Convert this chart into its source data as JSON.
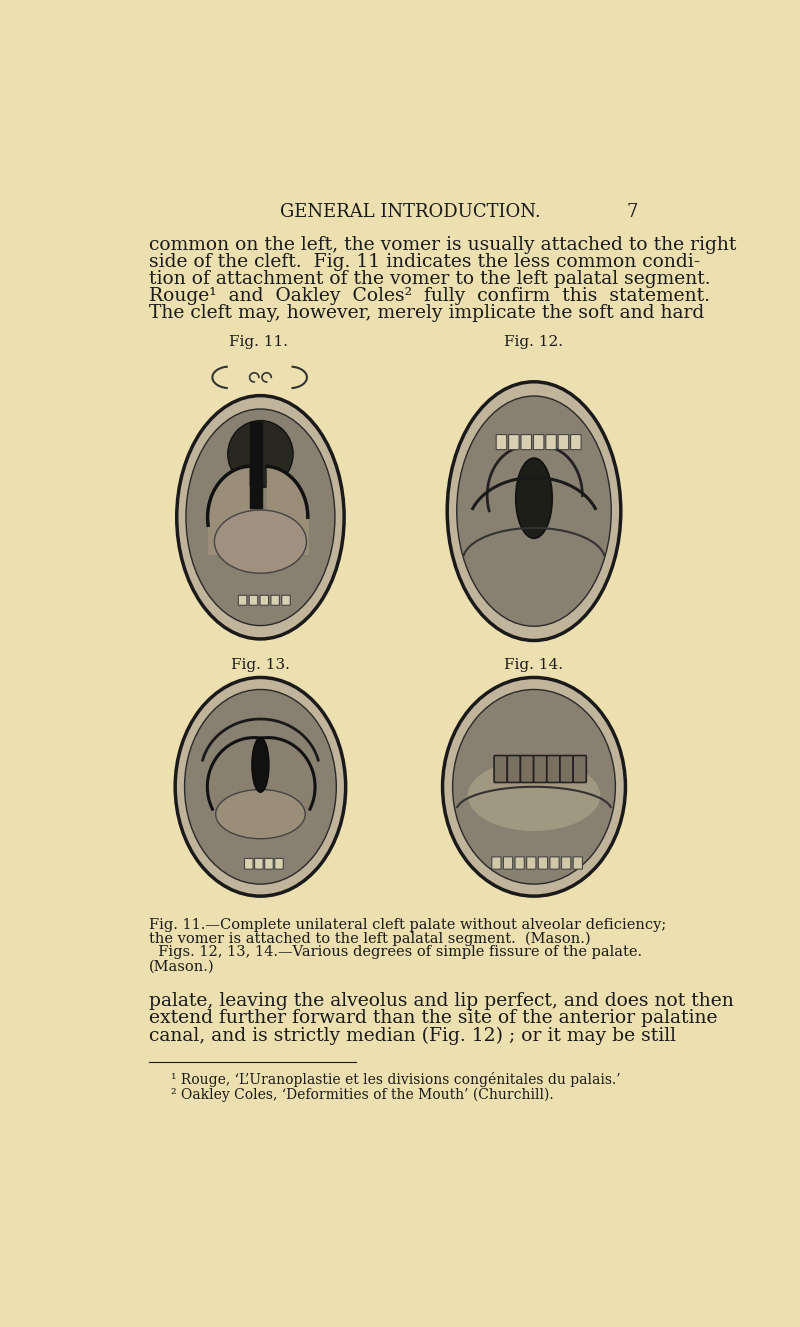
{
  "bg_color": "#ede0b0",
  "text_color": "#1a1a1a",
  "header_text": "GENERAL INTRODUCTION.",
  "page_number": "7",
  "header_fontsize": 13,
  "body_fontsize": 13.5,
  "caption_fontsize": 10.5,
  "footnote_fontsize": 10,
  "fig11_label": "Fig. 11.",
  "fig12_label": "Fig. 12.",
  "fig13_label": "Fig. 13.",
  "fig14_label": "Fig. 14.",
  "para1_lines": [
    "common on the left, the vomer is usually attached to the right",
    "side of the cleft.  Fig. 11 indicates the less common condi-",
    "tion of attachment of the vomer to the left palatal segment.",
    "Rouge¹  and  Oakley  Coles²  fully  confirm  this  statement.",
    "The cleft may, however, merely implicate the soft and hard"
  ],
  "caption1_lines": [
    "Fig. 11.—Complete unilateral cleft palate without alveolar deficiency;",
    "the vomer is attached to the left palatal segment.  (Mason.)",
    "  Figs. 12, 13, 14.—Various degrees of simple fissure of the palate.",
    "(Mason.)"
  ],
  "para2_lines": [
    "palate, leaving the alveolus and lip perfect, and does not then",
    "extend further forward than the site of the anterior palatine",
    "canal, and is strictly median (Fig. 12) ; or it may be still"
  ],
  "footnotes": [
    "¹ Rouge, ‘L’Uranoplastie et les divisions congénitales du palais.’",
    "² Oakley Coles, ‘Deformities of the Mouth’ (Churchill)."
  ]
}
